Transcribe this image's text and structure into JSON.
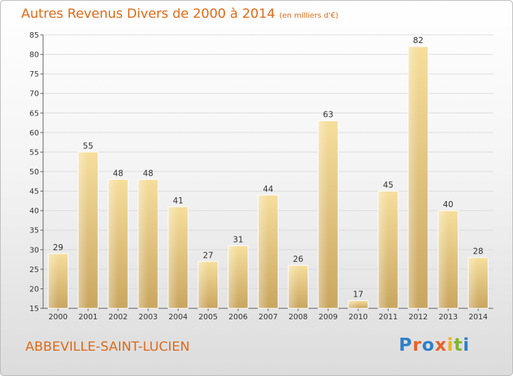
{
  "header": {
    "title": "Autres Revenus Divers de 2000 à 2014",
    "subtitle": "(en milliers d'€)"
  },
  "footer": {
    "city": "ABBEVILLE-SAINT-LUCIEN",
    "logo_text": "Proxiti",
    "logo_colors": [
      "#2e7fc8",
      "#e8612a",
      "#2e7fc8",
      "#e8612a",
      "#f0b21a",
      "#7fb62a",
      "#2e7fc8"
    ]
  },
  "chart_data": {
    "type": "bar",
    "title": "Autres Revenus Divers de 2000 à 2014",
    "subtitle": "(en milliers d'€)",
    "categories": [
      "2000",
      "2001",
      "2002",
      "2003",
      "2004",
      "2005",
      "2006",
      "2007",
      "2008",
      "2009",
      "2010",
      "2011",
      "2012",
      "2013",
      "2014"
    ],
    "values": [
      29,
      55,
      48,
      48,
      41,
      27,
      31,
      44,
      26,
      63,
      17,
      45,
      82,
      40,
      28
    ],
    "ylim": [
      15,
      85
    ],
    "yticks": [
      15,
      20,
      25,
      30,
      35,
      40,
      45,
      50,
      55,
      60,
      65,
      70,
      75,
      80,
      85
    ],
    "grid": true,
    "data_labels": true,
    "bar_color": "#e6c77c"
  }
}
